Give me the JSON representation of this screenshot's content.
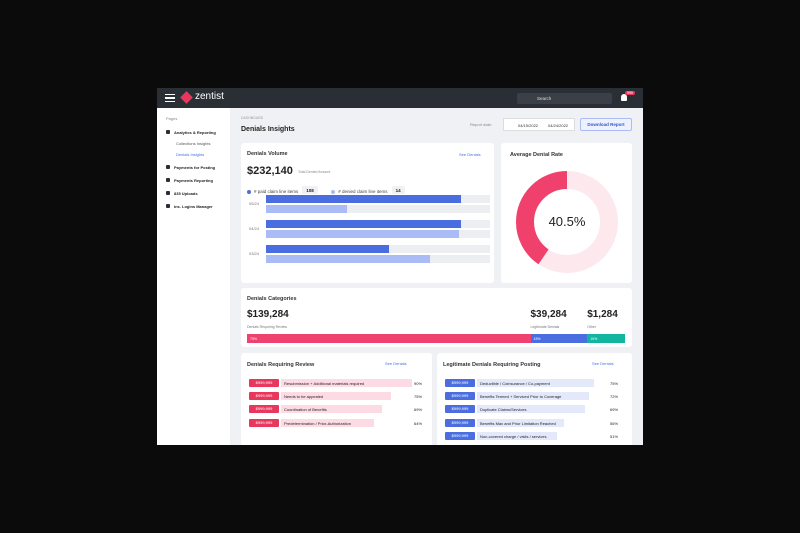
{
  "nav": {
    "logo": "zentist",
    "search": "Search",
    "badge": "999"
  },
  "sidebar": {
    "heading": "Pages",
    "items": [
      {
        "label": "Analytics & Reporting",
        "sub": [
          "Collections Insights",
          "Denials Insights"
        ]
      },
      {
        "label": "Payments for Posting",
        "sub": []
      },
      {
        "label": "Payments Reporting",
        "sub": []
      },
      {
        "label": "835 Uploads",
        "sub": []
      },
      {
        "label": "Ins. Logins Manager",
        "sub": []
      }
    ]
  },
  "header": {
    "breadcrumb": "DASHBOARD",
    "title": "Denials Insights",
    "report_label": "Report date:",
    "date_from": "04/15/2022",
    "date_to": "04/24/2022",
    "button": "Download Report"
  },
  "volume": {
    "title": "Denials Volume",
    "link": "See Denials",
    "amount": "$232,140",
    "amount_label": "Total Denied Amount",
    "legend": [
      {
        "label": "# paid claim line items",
        "count": "108",
        "color": "#4a6ee0"
      },
      {
        "label": "# denied claim line items",
        "count": "14",
        "color": "#a9bcf5"
      }
    ],
    "bars": [
      {
        "label": "05/24",
        "paid": 87,
        "denied": 36
      },
      {
        "label": "04/24",
        "paid": 87,
        "denied": 86
      },
      {
        "label": "03/24",
        "paid": 55,
        "denied": 73
      }
    ]
  },
  "rate": {
    "title": "Average Denial Rate",
    "value": 40.5,
    "label": "40.5%"
  },
  "categories": {
    "title": "Denials Categories",
    "items": [
      {
        "amount": "$139,284",
        "label": "Denials Requiring Review",
        "pct": 75,
        "pct_label": "75%",
        "color": "#ef426f"
      },
      {
        "amount": "$39,284",
        "label": "Legitimate Denials",
        "pct": 15,
        "pct_label": "15%",
        "color": "#4a6ee0"
      },
      {
        "amount": "$1,284",
        "label": "Other",
        "pct": 10,
        "pct_label": "10%",
        "color": "#12b5a0"
      }
    ]
  },
  "review": {
    "title": "Denials Requiring Review",
    "link": "See Denials",
    "rows": [
      {
        "amount": "$999,999",
        "text": "Resubmission + Additional materials required",
        "pct": 90,
        "pct_label": "90%"
      },
      {
        "amount": "$999,999",
        "text": "Needs to be appealed",
        "pct": 75,
        "pct_label": "75%"
      },
      {
        "amount": "$999,999",
        "text": "Coordination of Benefits",
        "pct": 69,
        "pct_label": "69%"
      },
      {
        "amount": "$999,999",
        "text": "Predetermination / Prior-Authorization",
        "pct": 64,
        "pct_label": "64%"
      }
    ]
  },
  "legit": {
    "title": "Legitimate Denials Requiring Posting",
    "link": "See Denials",
    "rows": [
      {
        "amount": "$999,999",
        "text": "Deductible / Coinsurance / Co-payment",
        "pct": 75,
        "pct_label": "75%"
      },
      {
        "amount": "$999,999",
        "text": "Benefits Termed + Serviced Prior to Coverage",
        "pct": 72,
        "pct_label": "72%"
      },
      {
        "amount": "$999,999",
        "text": "Duplicate Claims/Services",
        "pct": 69,
        "pct_label": "69%"
      },
      {
        "amount": "$999,999",
        "text": "Benefits Max and Prior Limitation Reached",
        "pct": 56,
        "pct_label": "56%"
      },
      {
        "amount": "$999,999",
        "text": "Non-covered charge / visits / services",
        "pct": 51,
        "pct_label": "51%"
      }
    ]
  }
}
